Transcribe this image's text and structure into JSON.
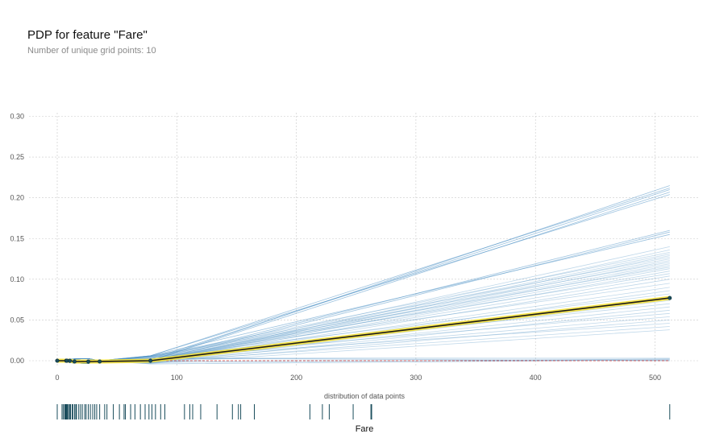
{
  "header": {
    "title": "PDP for feature \"Fare\"",
    "subtitle": "Number of unique grid points: 10"
  },
  "chart_data": {
    "type": "line",
    "title": "PDP for feature \"Fare\"",
    "subtitle": "Number of unique grid points: 10",
    "xlabel": "Fare",
    "ylabel": "",
    "xlim": [
      -20,
      540
    ],
    "ylim": [
      -0.01,
      0.305
    ],
    "xticks": [
      0,
      100,
      200,
      300,
      400,
      500
    ],
    "yticks": [
      0.0,
      0.05,
      0.1,
      0.15,
      0.2,
      0.25,
      0.3
    ],
    "grid": true,
    "grid_points_x": [
      0,
      7.55,
      7.9,
      8.05,
      10.5,
      14.45,
      26.0,
      35.5,
      77.96,
      512.33
    ],
    "pdp_series": {
      "x": [
        0,
        7.55,
        7.9,
        8.05,
        10.5,
        14.45,
        26.0,
        35.5,
        77.96,
        512.33
      ],
      "y": [
        0.0,
        0.0,
        0.0,
        0.0,
        0.0,
        -0.001,
        -0.001,
        -0.001,
        0.0,
        0.077
      ]
    },
    "ice_line_endpoints_y": [
      0.215,
      0.212,
      0.21,
      0.207,
      0.204,
      0.16,
      0.158,
      0.155,
      0.14,
      0.136,
      0.133,
      0.131,
      0.129,
      0.127,
      0.125,
      0.123,
      0.121,
      0.119,
      0.117,
      0.115,
      0.113,
      0.11,
      0.107,
      0.104,
      0.1,
      0.095,
      0.09,
      0.086,
      0.082,
      0.078,
      0.074,
      0.07,
      0.066,
      0.062,
      0.058,
      0.054,
      0.05,
      0.046,
      0.042,
      0.038,
      0.003,
      0.002,
      0.001,
      0.0
    ],
    "reference_line_y": 0.0,
    "distribution": {
      "label": "distribution of data points",
      "values": [
        0,
        4,
        5,
        6.2,
        6.75,
        7.05,
        7.23,
        7.55,
        7.75,
        7.9,
        8.05,
        8.66,
        9.5,
        10.5,
        11.13,
        12.47,
        13,
        14.45,
        15.5,
        16.1,
        18,
        19.5,
        21,
        23,
        24.15,
        26,
        27.72,
        29.7,
        31.39,
        33,
        35.5,
        39.69,
        41.58,
        46.9,
        52,
        55.9,
        57,
        61.38,
        65,
        69.55,
        73.5,
        76.73,
        79.2,
        82.17,
        86.5,
        90,
        106.43,
        110.88,
        113.28,
        120,
        133.65,
        146.52,
        151.55,
        153.46,
        164.87,
        211.34,
        221.78,
        227.53,
        247.52,
        262.38,
        263,
        512.33
      ]
    },
    "colors": {
      "pdp_line": "#1a1a1a",
      "pdp_band": "#f5e13a",
      "pdp_points": "#1a4d5c",
      "ice_lines": "#4b8fc4",
      "reference_line": "#cc3333",
      "distribution_bars": "#1a4d5c",
      "grid": "#c9c9c9"
    }
  }
}
